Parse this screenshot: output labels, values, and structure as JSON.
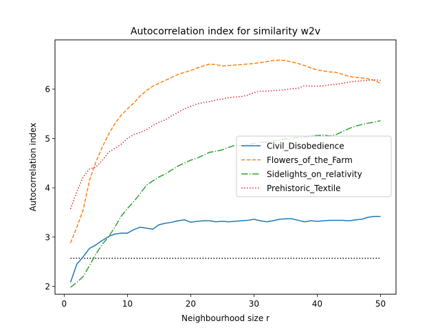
{
  "chart_data": {
    "type": "line",
    "title": "Autocorrelation index for similarity w2v",
    "xlabel": "Neighbourhood size r",
    "ylabel": "Autocorrelation index",
    "xlim": [
      -1.45,
      52.45
    ],
    "ylim": [
      1.84,
      7.0
    ],
    "xticks": [
      0,
      10,
      20,
      30,
      40,
      50
    ],
    "yticks": [
      2,
      3,
      4,
      5,
      6
    ],
    "grid": false,
    "legend_position": "center-right",
    "x": [
      1,
      2,
      3,
      4,
      5,
      6,
      7,
      8,
      9,
      10,
      11,
      12,
      13,
      14,
      15,
      16,
      17,
      18,
      19,
      20,
      21,
      22,
      23,
      24,
      25,
      26,
      27,
      28,
      29,
      30,
      31,
      32,
      33,
      34,
      35,
      36,
      37,
      38,
      39,
      40,
      41,
      42,
      43,
      44,
      45,
      46,
      47,
      48,
      49,
      50
    ],
    "series": [
      {
        "name": "Civil_Disobedience",
        "color": "#1f77b4",
        "style": "solid",
        "values": [
          2.08,
          2.45,
          2.6,
          2.77,
          2.84,
          2.93,
          3.01,
          3.06,
          3.08,
          3.08,
          3.15,
          3.2,
          3.18,
          3.16,
          3.25,
          3.28,
          3.3,
          3.33,
          3.35,
          3.3,
          3.32,
          3.33,
          3.33,
          3.31,
          3.32,
          3.31,
          3.32,
          3.33,
          3.34,
          3.36,
          3.33,
          3.31,
          3.33,
          3.36,
          3.37,
          3.37,
          3.34,
          3.31,
          3.33,
          3.32,
          3.33,
          3.34,
          3.34,
          3.34,
          3.33,
          3.35,
          3.36,
          3.4,
          3.42,
          3.42
        ]
      },
      {
        "name": "Flowers_of_the_Farm",
        "color": "#ff7f0e",
        "style": "dashed",
        "values": [
          2.88,
          3.2,
          3.55,
          4.15,
          4.52,
          4.82,
          5.08,
          5.3,
          5.47,
          5.6,
          5.72,
          5.86,
          5.97,
          6.06,
          6.12,
          6.18,
          6.24,
          6.3,
          6.34,
          6.38,
          6.43,
          6.47,
          6.51,
          6.5,
          6.47,
          6.48,
          6.49,
          6.5,
          6.51,
          6.52,
          6.54,
          6.56,
          6.58,
          6.59,
          6.58,
          6.55,
          6.52,
          6.48,
          6.43,
          6.39,
          6.37,
          6.35,
          6.34,
          6.3,
          6.26,
          6.24,
          6.23,
          6.21,
          6.18,
          6.12
        ]
      },
      {
        "name": "Sidelights_on_relativity",
        "color": "#2ca02c",
        "style": "dashdot",
        "values": [
          1.98,
          2.08,
          2.2,
          2.42,
          2.65,
          2.85,
          3.0,
          3.2,
          3.42,
          3.58,
          3.72,
          3.88,
          4.05,
          4.14,
          4.22,
          4.28,
          4.36,
          4.44,
          4.5,
          4.56,
          4.6,
          4.66,
          4.72,
          4.74,
          4.77,
          4.82,
          4.86,
          4.85,
          4.88,
          4.9,
          4.92,
          4.93,
          4.95,
          4.97,
          4.99,
          5.01,
          5.02,
          5.03,
          5.05,
          5.06,
          5.07,
          5.05,
          5.08,
          5.14,
          5.2,
          5.25,
          5.28,
          5.31,
          5.33,
          5.36
        ]
      },
      {
        "name": "Prehistoric_Textile",
        "color": "#d62728",
        "style": "dotted",
        "values": [
          3.57,
          3.92,
          4.22,
          4.38,
          4.42,
          4.55,
          4.72,
          4.8,
          4.88,
          5.0,
          5.08,
          5.12,
          5.18,
          5.26,
          5.33,
          5.38,
          5.46,
          5.53,
          5.6,
          5.65,
          5.7,
          5.73,
          5.75,
          5.78,
          5.8,
          5.83,
          5.84,
          5.85,
          5.88,
          5.93,
          5.96,
          5.96,
          5.97,
          5.98,
          5.99,
          6.01,
          6.02,
          6.07,
          6.06,
          6.06,
          6.07,
          6.09,
          6.1,
          6.12,
          6.14,
          6.16,
          6.17,
          6.18,
          6.19,
          6.18
        ]
      }
    ],
    "reference_line": {
      "y": 2.57,
      "x_range": [
        1,
        50
      ],
      "color": "#000000",
      "style": "dotted"
    }
  }
}
